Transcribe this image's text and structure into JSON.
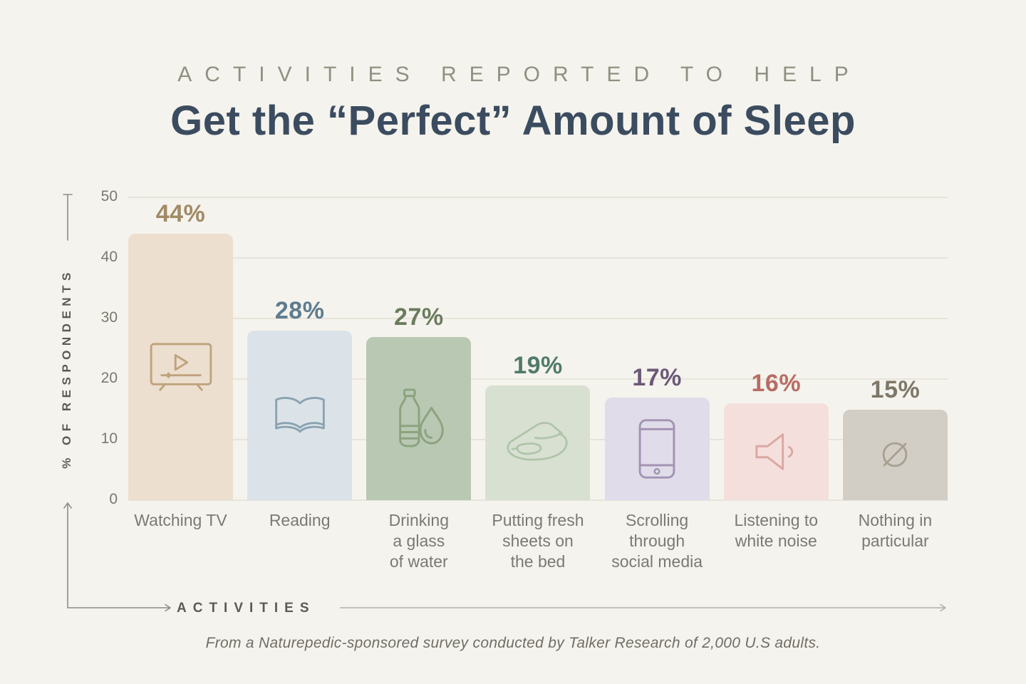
{
  "header": {
    "kicker": "ACTIVITIES REPORTED TO HELP",
    "title": "Get the “Perfect” Amount of Sleep"
  },
  "chart_data": {
    "type": "bar",
    "title": "Activities Reported to Help Get the “Perfect” Amount of Sleep",
    "xlabel": "ACTIVITIES",
    "ylabel": "% OF RESPONDENTS",
    "ylim": [
      0,
      50
    ],
    "yticks": [
      50,
      40,
      30,
      20,
      10,
      0
    ],
    "grid": true,
    "value_suffix": "%",
    "categories": [
      "Watching TV",
      "Reading",
      "Drinking a glass of water",
      "Putting fresh sheets on the bed",
      "Scrolling through social media",
      "Listening to white noise",
      "Nothing in particular"
    ],
    "values": [
      44,
      28,
      27,
      19,
      17,
      16,
      15
    ],
    "bars": [
      {
        "label": "Watching TV",
        "label_multiline": "Watching TV",
        "value": 44,
        "value_label": "44%",
        "bar_color": "#ecdfd0",
        "value_color": "#a18a66",
        "icon_color": "#bfa37d",
        "icon": "tv-icon"
      },
      {
        "label": "Reading",
        "label_multiline": "Reading",
        "value": 28,
        "value_label": "28%",
        "bar_color": "#dbe3e9",
        "value_color": "#5e7c8f",
        "icon_color": "#8aa2b0",
        "icon": "open-book-icon"
      },
      {
        "label": "Drinking a glass of water",
        "label_multiline": "Drinking\na glass\nof water",
        "value": 27,
        "value_label": "27%",
        "bar_color": "#b9c8b3",
        "value_color": "#6b7c5f",
        "icon_color": "#8ba37f",
        "icon": "water-bottle-icon"
      },
      {
        "label": "Putting fresh sheets on the bed",
        "label_multiline": "Putting fresh\nsheets on\nthe bed",
        "value": 19,
        "value_label": "19%",
        "bar_color": "#d8e0d2",
        "value_color": "#507a6b",
        "icon_color": "#b0c4a9",
        "icon": "sheets-icon"
      },
      {
        "label": "Scrolling through social media",
        "label_multiline": "Scrolling\nthrough\nsocial media",
        "value": 17,
        "value_label": "17%",
        "bar_color": "#e0dce9",
        "value_color": "#6c5878",
        "icon_color": "#a292b2",
        "icon": "smartphone-icon"
      },
      {
        "label": "Listening to white noise",
        "label_multiline": "Listening to\nwhite noise",
        "value": 16,
        "value_label": "16%",
        "bar_color": "#f4dfdc",
        "value_color": "#b86c64",
        "icon_color": "#dba7a1",
        "icon": "speaker-icon"
      },
      {
        "label": "Nothing in particular",
        "label_multiline": "Nothing in\nparticular",
        "value": 15,
        "value_label": "15%",
        "bar_color": "#d3cec5",
        "value_color": "#7e7769",
        "icon_color": "#a89f90",
        "icon": "null-icon"
      }
    ]
  },
  "footer": {
    "source": "From a Naturepedic-sponsored survey conducted by Talker Research of 2,000 U.S adults."
  }
}
